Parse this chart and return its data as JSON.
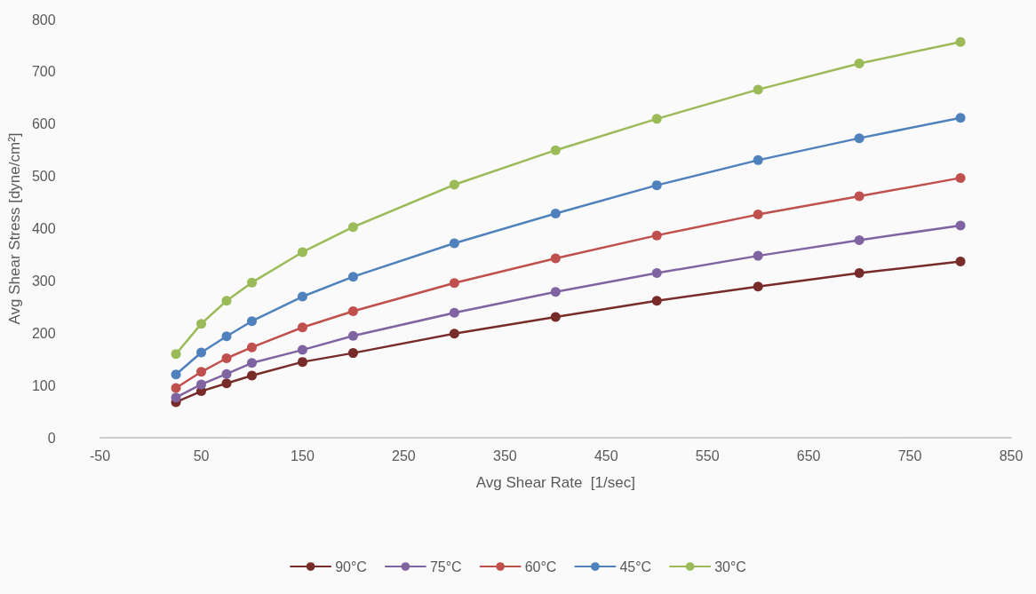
{
  "chart_data": {
    "type": "line",
    "xlabel": "Avg Shear Rate  [1/sec]",
    "ylabel": "Avg Shear Stress [dyne/cm²]",
    "x": [
      25,
      50,
      75,
      100,
      150,
      200,
      300,
      400,
      500,
      600,
      700,
      800
    ],
    "series": [
      {
        "name": "90°C",
        "color": "#772c2a",
        "values": [
          68,
          89,
          104,
          119,
          145,
          162,
          199,
          231,
          262,
          289,
          315,
          337
        ]
      },
      {
        "name": "75°C",
        "color": "#8064a2",
        "values": [
          77,
          102,
          122,
          143,
          168,
          195,
          239,
          279,
          315,
          348,
          378,
          406
        ]
      },
      {
        "name": "60°C",
        "color": "#c0504d",
        "values": [
          95,
          126,
          152,
          173,
          211,
          242,
          296,
          343,
          387,
          427,
          462,
          497
        ]
      },
      {
        "name": "45°C",
        "color": "#4f81bd",
        "values": [
          121,
          163,
          194,
          223,
          270,
          308,
          372,
          429,
          483,
          531,
          573,
          612
        ]
      },
      {
        "name": "30°C",
        "color": "#9bbb59",
        "values": [
          160,
          218,
          262,
          297,
          355,
          403,
          484,
          550,
          610,
          666,
          716,
          757
        ]
      }
    ],
    "xlim": [
      -50,
      850
    ],
    "xticks": [
      -50,
      50,
      150,
      250,
      350,
      450,
      550,
      650,
      750,
      850
    ],
    "ylim": [
      0,
      800
    ],
    "yticks": [
      0,
      100,
      200,
      300,
      400,
      500,
      600,
      700,
      800
    ],
    "grid": false,
    "legend": "bottom",
    "marker": "circle",
    "line_style": "solid"
  }
}
